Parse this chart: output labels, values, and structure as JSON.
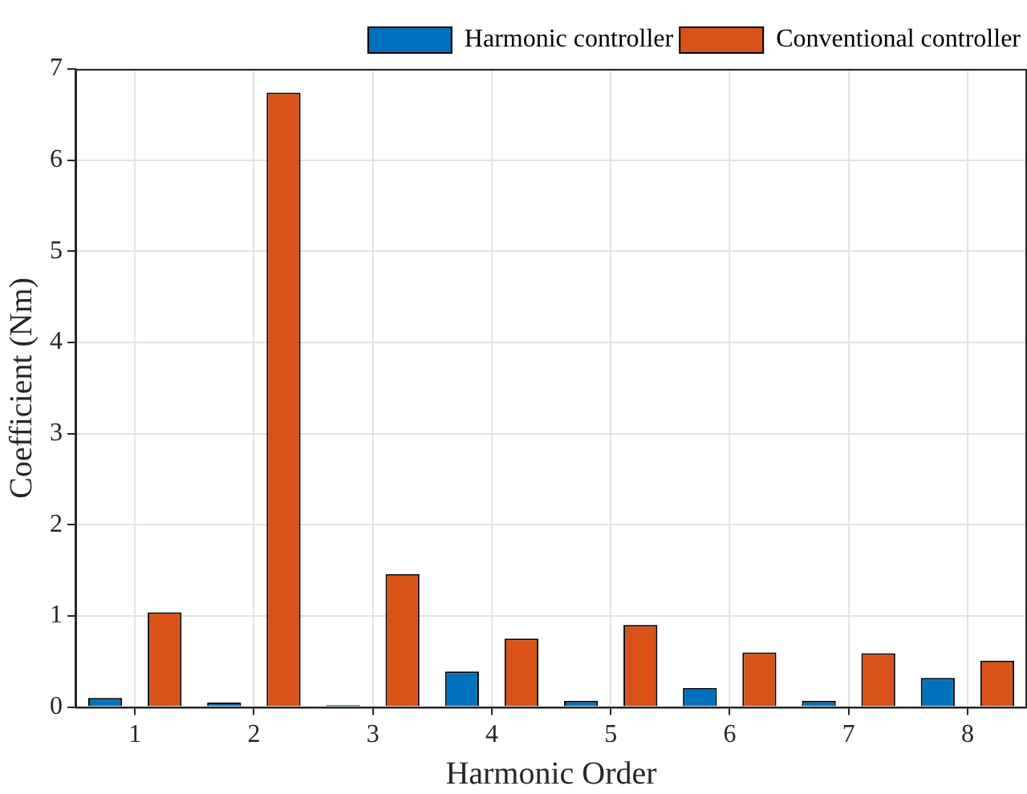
{
  "chart_data": {
    "type": "bar",
    "xlabel": "Harmonic Order",
    "ylabel": "Coefficient (Nm)",
    "categories": [
      "1",
      "2",
      "3",
      "4",
      "5",
      "6",
      "7",
      "8"
    ],
    "series": [
      {
        "name": "Harmonic controller",
        "color": "#0072bd",
        "values": [
          0.1,
          0.05,
          0.02,
          0.39,
          0.07,
          0.21,
          0.07,
          0.32
        ]
      },
      {
        "name": "Conventional controller",
        "color": "#d95319",
        "values": [
          1.04,
          6.74,
          1.46,
          0.75,
          0.9,
          0.6,
          0.59,
          0.51
        ]
      }
    ],
    "ylim": [
      0,
      7
    ],
    "yticks": [
      0,
      1,
      2,
      3,
      4,
      5,
      6,
      7
    ],
    "grid": true,
    "legend": "top right"
  }
}
